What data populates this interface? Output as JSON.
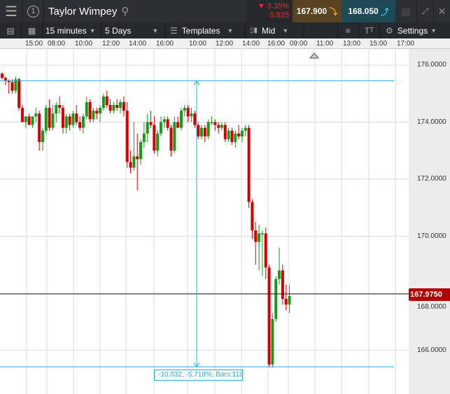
{
  "header": {
    "title": "Taylor Wimpey",
    "window_number": "1",
    "change_pct": "3.35%",
    "change_abs": "5.825",
    "sell_price": "167.900",
    "buy_price": "168.050"
  },
  "toolbar": {
    "interval": "15 minutes",
    "range": "5 Days",
    "templates": "Templates",
    "price_type": "Mid",
    "settings": "Settings"
  },
  "time_axis": [
    "15:00",
    "08:00",
    "10:00",
    "12:00",
    "14:00",
    "16:00",
    "10:00",
    "12:00",
    "14:00",
    "16:00",
    "09:00",
    "11:00",
    "13:00",
    "15:00",
    "17:00"
  ],
  "price_axis": [
    "176.0000",
    "174.0000",
    "172.0000",
    "170.0000",
    "168.0000",
    "166.0000"
  ],
  "current_price": "167.9750",
  "measurement": {
    "label": "-10.032, -5.718%, Bars:118"
  },
  "colors": {
    "up": "#1a9a1a",
    "down": "#d40000",
    "measure": "#27b0d8",
    "sell_bg": "#5a4322",
    "buy_bg": "#1d4a55"
  },
  "chart_data": {
    "type": "candlestick",
    "ylim": [
      165,
      177.3
    ],
    "current": 167.975,
    "measure_top": 175.45,
    "measure_bottom": 165.42,
    "candles": [
      [
        175.7,
        175.75,
        175.5,
        175.55
      ],
      [
        175.55,
        175.6,
        175.3,
        175.45
      ],
      [
        175.45,
        175.5,
        175.0,
        175.4
      ],
      [
        175.4,
        175.5,
        175.0,
        175.1
      ],
      [
        175.1,
        175.6,
        175.0,
        175.5
      ],
      [
        175.5,
        175.55,
        174.4,
        174.5
      ],
      [
        174.5,
        174.6,
        174.0,
        174.0
      ],
      [
        174.0,
        174.2,
        173.8,
        174.2
      ],
      [
        174.2,
        174.3,
        173.9,
        173.9
      ],
      [
        173.9,
        174.2,
        173.8,
        174.2
      ],
      [
        174.2,
        174.5,
        174.0,
        174.3
      ],
      [
        174.3,
        174.4,
        173.0,
        173.3
      ],
      [
        173.3,
        173.8,
        173.0,
        173.7
      ],
      [
        173.7,
        174.6,
        173.6,
        174.5
      ],
      [
        174.5,
        174.8,
        173.7,
        173.8
      ],
      [
        173.8,
        174.6,
        173.7,
        174.3
      ],
      [
        174.3,
        174.7,
        174.0,
        174.6
      ],
      [
        174.6,
        174.9,
        174.3,
        174.5
      ],
      [
        174.5,
        174.6,
        173.6,
        173.8
      ],
      [
        173.8,
        174.3,
        173.6,
        174.2
      ],
      [
        174.2,
        174.3,
        173.7,
        173.9
      ],
      [
        173.9,
        174.4,
        173.8,
        174.3
      ],
      [
        174.3,
        174.6,
        173.9,
        174.0
      ],
      [
        174.0,
        174.2,
        173.7,
        173.8
      ],
      [
        173.8,
        174.3,
        173.6,
        174.2
      ],
      [
        174.2,
        174.9,
        174.1,
        174.7
      ],
      [
        174.7,
        174.8,
        174.0,
        174.1
      ],
      [
        174.1,
        174.5,
        174.0,
        174.4
      ],
      [
        174.4,
        174.5,
        174.1,
        174.3
      ],
      [
        174.3,
        174.6,
        174.0,
        174.5
      ],
      [
        174.5,
        175.0,
        174.4,
        174.9
      ],
      [
        174.9,
        175.1,
        174.5,
        174.6
      ],
      [
        174.6,
        174.8,
        174.3,
        174.4
      ],
      [
        174.4,
        174.7,
        174.3,
        174.6
      ],
      [
        174.6,
        174.8,
        174.4,
        174.5
      ],
      [
        174.5,
        174.8,
        174.3,
        174.7
      ],
      [
        174.7,
        174.9,
        174.2,
        174.4
      ],
      [
        174.4,
        174.7,
        172.4,
        172.6
      ],
      [
        172.6,
        173.0,
        172.2,
        172.4
      ],
      [
        172.4,
        174.0,
        172.3,
        172.8
      ],
      [
        172.8,
        173.6,
        171.6,
        172.7
      ],
      [
        172.7,
        173.4,
        172.5,
        173.3
      ],
      [
        173.3,
        174.0,
        173.1,
        173.6
      ],
      [
        173.6,
        174.3,
        173.3,
        174.0
      ],
      [
        174.0,
        174.4,
        173.8,
        173.9
      ],
      [
        173.9,
        174.2,
        172.9,
        173.0
      ],
      [
        173.0,
        173.7,
        172.8,
        173.6
      ],
      [
        173.6,
        174.2,
        173.5,
        174.0
      ],
      [
        174.0,
        174.2,
        173.8,
        174.1
      ],
      [
        174.1,
        174.2,
        173.7,
        173.8
      ],
      [
        173.8,
        173.9,
        172.8,
        173.0
      ],
      [
        173.0,
        174.2,
        172.9,
        174.0
      ],
      [
        174.0,
        174.2,
        173.8,
        173.8
      ],
      [
        173.8,
        174.5,
        173.7,
        174.4
      ],
      [
        174.4,
        174.6,
        174.2,
        174.5
      ],
      [
        174.5,
        174.6,
        174.0,
        174.2
      ],
      [
        174.2,
        174.5,
        174.0,
        174.3
      ],
      [
        174.3,
        174.4,
        173.8,
        173.9
      ],
      [
        173.9,
        174.0,
        173.4,
        173.5
      ],
      [
        173.5,
        173.9,
        173.4,
        173.8
      ],
      [
        173.8,
        173.9,
        173.3,
        173.5
      ],
      [
        173.5,
        174.1,
        173.4,
        174.0
      ],
      [
        174.0,
        174.2,
        173.9,
        174.0
      ],
      [
        174.0,
        174.1,
        173.7,
        173.9
      ],
      [
        173.9,
        174.0,
        173.6,
        173.8
      ],
      [
        173.8,
        174.0,
        173.7,
        173.9
      ],
      [
        173.9,
        174.0,
        173.3,
        173.4
      ],
      [
        173.4,
        173.8,
        173.3,
        173.7
      ],
      [
        173.7,
        173.8,
        173.2,
        173.3
      ],
      [
        173.3,
        173.7,
        173.1,
        173.6
      ],
      [
        173.6,
        173.9,
        173.4,
        173.5
      ],
      [
        173.5,
        173.8,
        173.3,
        173.7
      ],
      [
        173.7,
        173.9,
        173.5,
        173.8
      ],
      [
        173.8,
        173.9,
        171.0,
        171.2
      ],
      [
        171.2,
        171.3,
        169.9,
        170.2
      ],
      [
        170.2,
        170.5,
        169.0,
        169.8
      ],
      [
        169.8,
        170.4,
        168.8,
        170.1
      ],
      [
        170.1,
        170.2,
        168.6,
        170.1
      ],
      [
        170.1,
        170.3,
        168.5,
        168.9
      ],
      [
        168.9,
        169.0,
        165.4,
        165.5
      ],
      [
        165.5,
        167.3,
        165.4,
        167.1
      ],
      [
        167.1,
        168.6,
        167.0,
        168.5
      ],
      [
        168.5,
        169.6,
        168.3,
        168.8
      ],
      [
        168.8,
        169.0,
        167.6,
        167.8
      ],
      [
        167.8,
        168.3,
        167.4,
        167.6
      ],
      [
        167.6,
        168.3,
        167.3,
        167.9
      ]
    ]
  }
}
